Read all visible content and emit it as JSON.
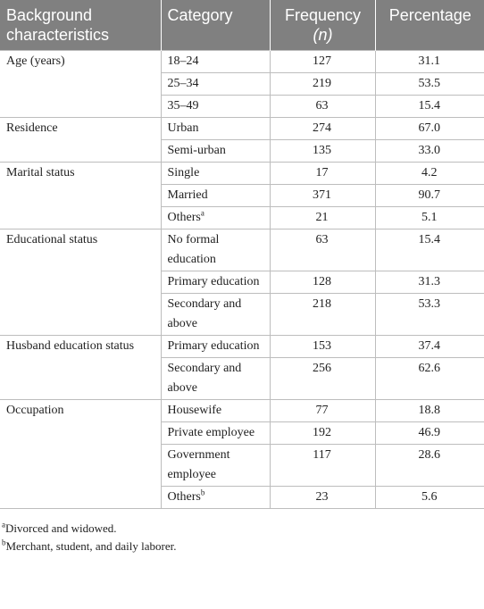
{
  "table": {
    "headers": [
      {
        "text": "Background characteristics"
      },
      {
        "text": "Category"
      },
      {
        "text": "Frequency",
        "italic": "(n)"
      },
      {
        "text": "Percentage"
      }
    ],
    "groups": [
      {
        "label": "Age (years)",
        "rows": [
          {
            "category": "18–24",
            "frequency": "127",
            "percentage": "31.1"
          },
          {
            "category": "25–34",
            "frequency": "219",
            "percentage": "53.5"
          },
          {
            "category": "35–49",
            "frequency": "63",
            "percentage": "15.4"
          }
        ]
      },
      {
        "label": "Residence",
        "rows": [
          {
            "category": "Urban",
            "frequency": "274",
            "percentage": "67.0"
          },
          {
            "category": "Semi-urban",
            "frequency": "135",
            "percentage": "33.0"
          }
        ]
      },
      {
        "label": "Marital status",
        "rows": [
          {
            "category": "Single",
            "frequency": "17",
            "percentage": "4.2"
          },
          {
            "category": "Married",
            "frequency": "371",
            "percentage": "90.7"
          },
          {
            "category": "Others",
            "sup": "a",
            "frequency": "21",
            "percentage": "5.1"
          }
        ]
      },
      {
        "label": "Educational status",
        "rows": [
          {
            "category": "No formal education",
            "frequency": "63",
            "percentage": "15.4"
          },
          {
            "category": "Primary education",
            "frequency": "128",
            "percentage": "31.3"
          },
          {
            "category": "Secondary and above",
            "frequency": "218",
            "percentage": "53.3"
          }
        ]
      },
      {
        "label": "Husband education status",
        "rows": [
          {
            "category": "Primary education",
            "frequency": "153",
            "percentage": "37.4"
          },
          {
            "category": "Secondary and above",
            "frequency": "256",
            "percentage": "62.6"
          }
        ]
      },
      {
        "label": "Occupation",
        "rows": [
          {
            "category": "Housewife",
            "frequency": "77",
            "percentage": "18.8"
          },
          {
            "category": "Private employee",
            "frequency": "192",
            "percentage": "46.9"
          },
          {
            "category": "Government employee",
            "frequency": "117",
            "percentage": "28.6"
          },
          {
            "category": "Others",
            "sup": "b",
            "frequency": "23",
            "percentage": "5.6"
          }
        ]
      }
    ],
    "footnotes": [
      {
        "mark": "a",
        "text": "Divorced and widowed."
      },
      {
        "mark": "b",
        "text": "Merchant, student, and daily laborer."
      }
    ]
  }
}
